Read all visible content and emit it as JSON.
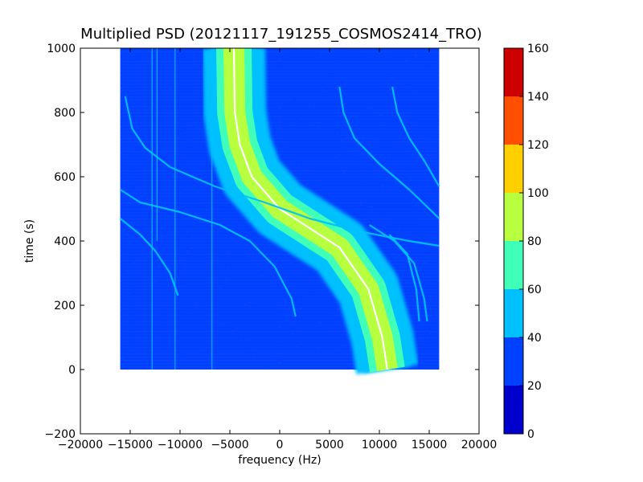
{
  "chart_data": {
    "type": "heatmap",
    "title": "Multiplied PSD (20121117_191255_COSMOS2414_TRO)",
    "xlabel": "frequency (Hz)",
    "ylabel": "time (s)",
    "xlim": [
      -20000,
      20000
    ],
    "ylim": [
      -200,
      1000
    ],
    "xticks": [
      -20000,
      -15000,
      -10000,
      -5000,
      0,
      5000,
      10000,
      15000,
      20000
    ],
    "xtick_labels": [
      "−20000",
      "−15000",
      "−10000",
      "−5000",
      "0",
      "5000",
      "10000",
      "15000",
      "20000"
    ],
    "yticks": [
      -200,
      0,
      200,
      400,
      600,
      800,
      1000
    ],
    "ytick_labels": [
      "−200",
      "0",
      "200",
      "400",
      "600",
      "800",
      "1000"
    ],
    "data_extent": {
      "x": [
        -16000,
        16000
      ],
      "y": [
        0,
        1000
      ]
    },
    "background_level": 25,
    "traces": [
      {
        "name": "main-carrier",
        "points": [
          [
            10800,
            0
          ],
          [
            10300,
            100
          ],
          [
            8900,
            250
          ],
          [
            6000,
            380
          ],
          [
            0,
            500
          ],
          [
            -2800,
            600
          ],
          [
            -4000,
            700
          ],
          [
            -4500,
            800
          ],
          [
            -4600,
            1000
          ]
        ],
        "peak_level": 95
      },
      {
        "name": "line-left-1",
        "points": [
          [
            -15500,
            850
          ],
          [
            -14800,
            750
          ],
          [
            -13500,
            690
          ],
          [
            -11000,
            630
          ],
          [
            -6500,
            570
          ],
          [
            -1500,
            520
          ],
          [
            3000,
            470
          ],
          [
            8000,
            430
          ],
          [
            13000,
            400
          ],
          [
            16000,
            385
          ]
        ],
        "peak_level": 55
      },
      {
        "name": "line-left-2",
        "points": [
          [
            -16000,
            560
          ],
          [
            -14000,
            520
          ],
          [
            -10000,
            490
          ],
          [
            -6000,
            450
          ],
          [
            -3000,
            400
          ],
          [
            -500,
            320
          ],
          [
            1200,
            220
          ],
          [
            1600,
            165
          ]
        ],
        "peak_level": 55
      },
      {
        "name": "line-left-3",
        "points": [
          [
            -16000,
            470
          ],
          [
            -14000,
            420
          ],
          [
            -12500,
            370
          ],
          [
            -11000,
            300
          ],
          [
            -10200,
            230
          ]
        ],
        "peak_level": 50
      },
      {
        "name": "line-right-1",
        "points": [
          [
            6000,
            880
          ],
          [
            6400,
            800
          ],
          [
            7500,
            720
          ],
          [
            10000,
            640
          ],
          [
            13000,
            560
          ],
          [
            16000,
            470
          ]
        ],
        "peak_level": 55
      },
      {
        "name": "line-right-2",
        "points": [
          [
            11300,
            880
          ],
          [
            11800,
            800
          ],
          [
            13000,
            720
          ],
          [
            14500,
            650
          ],
          [
            16000,
            570
          ]
        ],
        "peak_level": 55
      },
      {
        "name": "line-right-3",
        "points": [
          [
            9000,
            450
          ],
          [
            11500,
            400
          ],
          [
            13500,
            330
          ],
          [
            14500,
            220
          ],
          [
            14800,
            150
          ]
        ],
        "peak_level": 45
      },
      {
        "name": "line-right-4",
        "points": [
          [
            11000,
            420
          ],
          [
            12800,
            360
          ],
          [
            13700,
            250
          ],
          [
            14000,
            150
          ]
        ],
        "peak_level": 45
      }
    ],
    "vertical_lines": [
      {
        "x": -12800,
        "y": [
          0,
          1000
        ],
        "level": 50
      },
      {
        "x": -12300,
        "y": [
          400,
          1000
        ],
        "level": 45
      },
      {
        "x": -6800,
        "y": [
          0,
          1000
        ],
        "level": 45
      },
      {
        "x": -10500,
        "y": [
          0,
          1000
        ],
        "level": 40
      }
    ],
    "colorbar": {
      "levels": [
        0,
        20,
        40,
        60,
        80,
        100,
        120,
        140,
        160
      ],
      "tick_labels": [
        "0",
        "20",
        "40",
        "60",
        "80",
        "100",
        "120",
        "140",
        "160"
      ],
      "colors": [
        "#0000cd",
        "#0040ff",
        "#00c0ff",
        "#40ffb8",
        "#b8ff40",
        "#ffd000",
        "#ff5000",
        "#cd0000"
      ],
      "position": "right"
    },
    "grid": false
  }
}
